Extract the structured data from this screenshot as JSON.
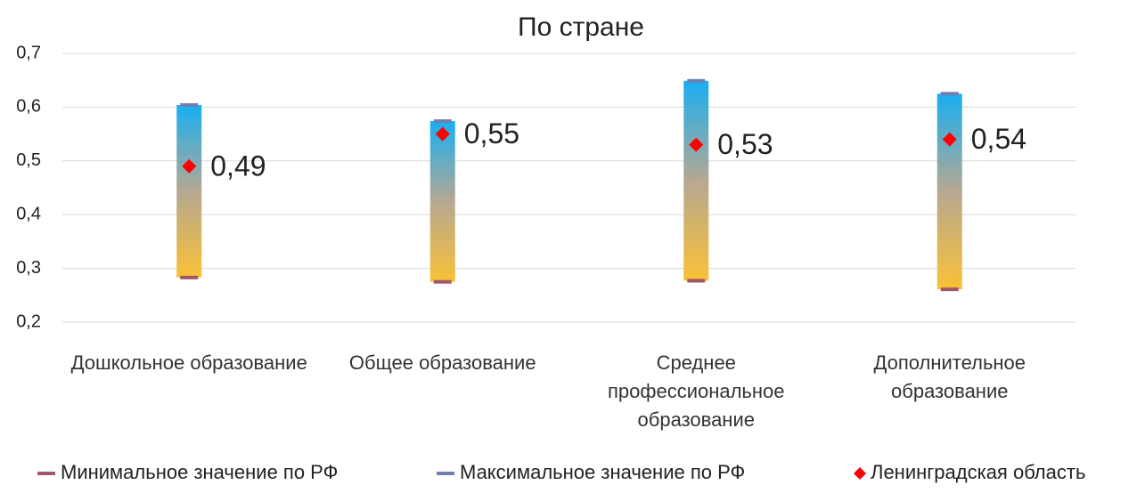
{
  "chart_data": {
    "type": "range",
    "title": "По стране",
    "categories": [
      "Дошкольное образование",
      "Общее образование",
      "Среднее профессиональное образование",
      "Дополнительное образование"
    ],
    "series": [
      {
        "name": "Минимальное значение по РФ",
        "color": "#9e5868",
        "values": [
          0.283,
          0.275,
          0.277,
          0.261
        ]
      },
      {
        "name": "Максимальное значение по РФ",
        "color": "#6f7fb3",
        "values": [
          0.604,
          0.574,
          0.649,
          0.625
        ]
      },
      {
        "name": "Ленинградская область",
        "color": "#ff0000",
        "values": [
          0.49,
          0.55,
          0.53,
          0.54
        ],
        "value_labels": [
          "0,49",
          "0,55",
          "0,53",
          "0,54"
        ]
      }
    ],
    "ylim": [
      0.2,
      0.7
    ],
    "yticks": [
      {
        "value": 0.2,
        "label": "0,2"
      },
      {
        "value": 0.3,
        "label": "0,3"
      },
      {
        "value": 0.4,
        "label": "0,4"
      },
      {
        "value": 0.5,
        "label": "0,5"
      },
      {
        "value": 0.6,
        "label": "0,6"
      },
      {
        "value": 0.7,
        "label": "0,7"
      }
    ],
    "grid": true,
    "legend": "bottom"
  }
}
